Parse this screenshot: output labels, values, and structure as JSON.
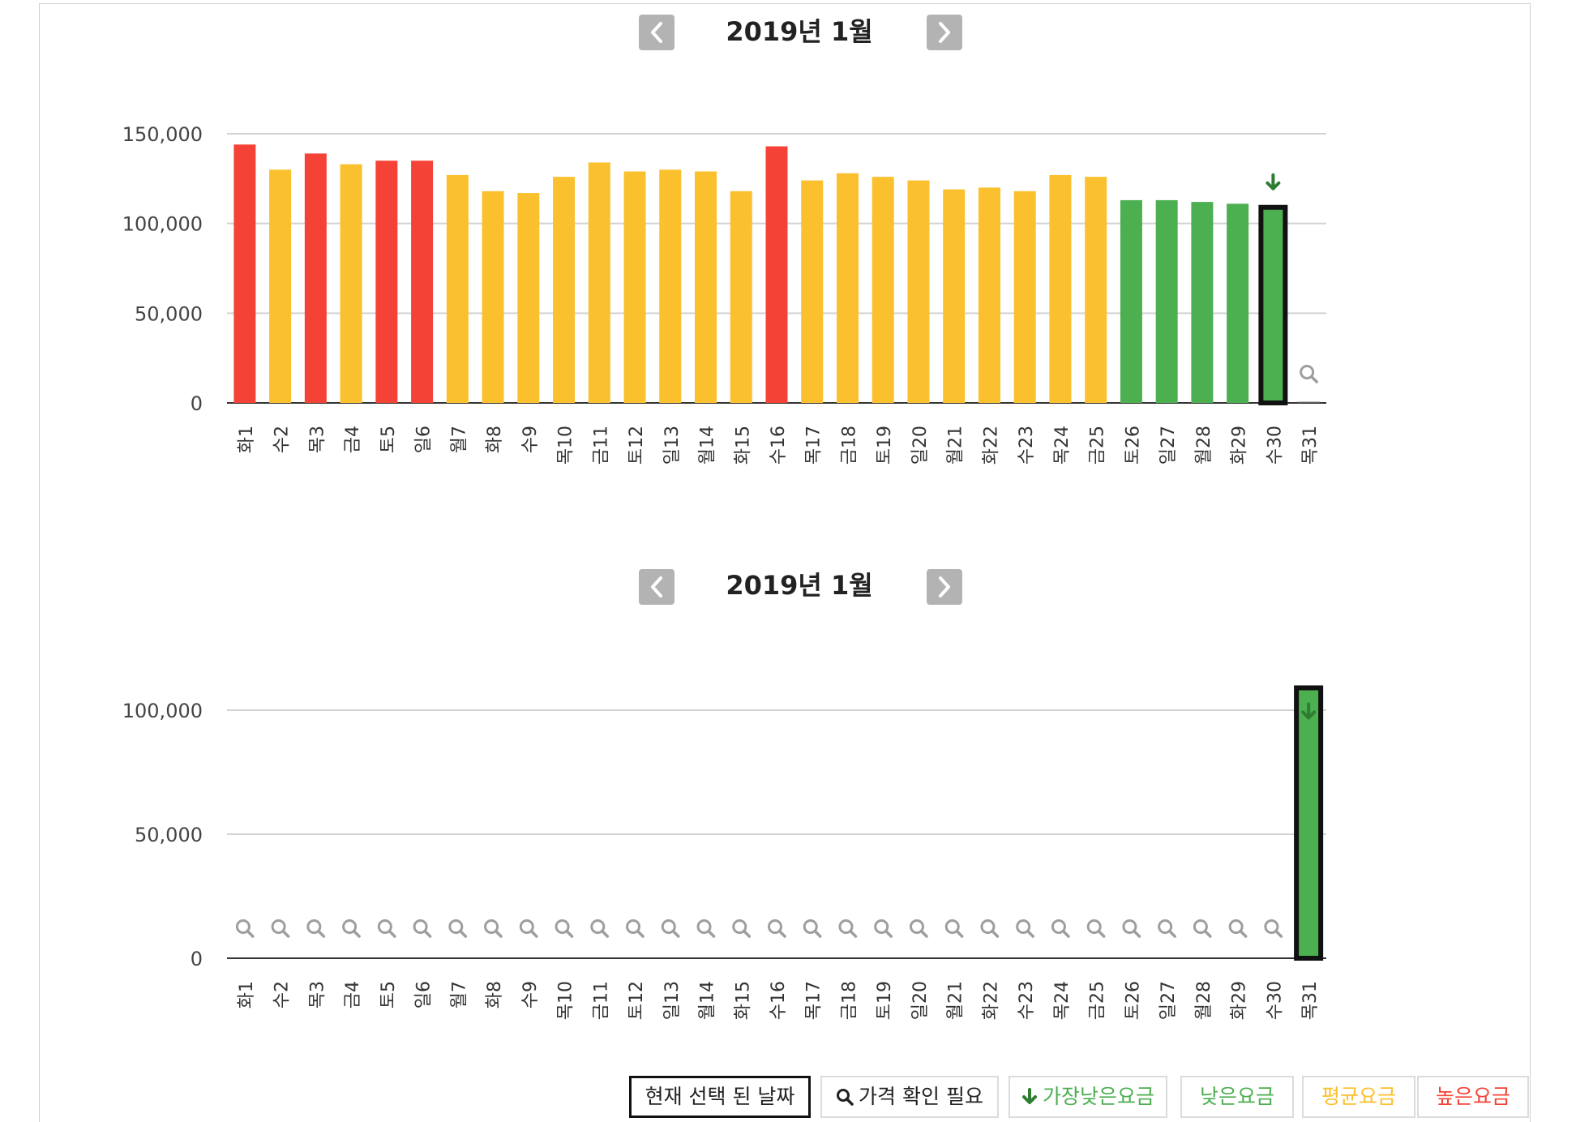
{
  "colors": {
    "high": "#f44336",
    "average": "#fbc02d",
    "low": "#4caf50",
    "lowest_arrow": "#2e7d32",
    "nav_button": "#b3b3b3",
    "grid": "#d3d3d3",
    "axis": "#333333",
    "search_icon": "#9e9e9e"
  },
  "icons": {
    "prev": "chevron-left-icon",
    "next": "chevron-right-icon",
    "lowest": "arrow-down-icon",
    "check_price": "search-icon"
  },
  "legend": {
    "selected": "현재 선택 된 날짜",
    "check_price": "가격 확인 필요",
    "lowest": "가장낮은요금",
    "low": "낮은요금",
    "average": "평균요금",
    "high": "높은요금"
  },
  "chart_data": [
    {
      "type": "bar",
      "title": "2019년 1월",
      "categories": [
        "화1",
        "수2",
        "목3",
        "금4",
        "토5",
        "일6",
        "월7",
        "화8",
        "수9",
        "목10",
        "금11",
        "토12",
        "일13",
        "월14",
        "화15",
        "수16",
        "목17",
        "금18",
        "토19",
        "일20",
        "월21",
        "화22",
        "수23",
        "목24",
        "금25",
        "토26",
        "일27",
        "월28",
        "화29",
        "수30",
        "목31"
      ],
      "values": [
        144000,
        130000,
        139000,
        133000,
        135000,
        135000,
        127000,
        118000,
        117000,
        126000,
        134000,
        129000,
        130000,
        129000,
        118000,
        143000,
        124000,
        128000,
        126000,
        124000,
        119000,
        120000,
        118000,
        127000,
        126000,
        113000,
        113000,
        112000,
        111000,
        109000,
        null
      ],
      "levels": [
        "high",
        "average",
        "high",
        "average",
        "high",
        "high",
        "average",
        "average",
        "average",
        "average",
        "average",
        "average",
        "average",
        "average",
        "average",
        "high",
        "average",
        "average",
        "average",
        "average",
        "average",
        "average",
        "average",
        "average",
        "average",
        "low",
        "low",
        "low",
        "low",
        "low",
        "none"
      ],
      "selected_index": 29,
      "lowest_index": 29,
      "check_price_indices": [
        30
      ],
      "yticks": [
        0,
        50000,
        100000,
        150000
      ],
      "ytick_labels": [
        "0",
        "50,000",
        "100,000",
        "150,000"
      ],
      "ylim": [
        0,
        150000
      ],
      "grid": true
    },
    {
      "type": "bar",
      "title": "2019년 1월",
      "categories": [
        "화1",
        "수2",
        "목3",
        "금4",
        "토5",
        "일6",
        "월7",
        "화8",
        "수9",
        "목10",
        "금11",
        "토12",
        "일13",
        "월14",
        "화15",
        "수16",
        "목17",
        "금18",
        "토19",
        "일20",
        "월21",
        "화22",
        "수23",
        "목24",
        "금25",
        "토26",
        "일27",
        "월28",
        "화29",
        "수30",
        "목31"
      ],
      "values": [
        null,
        null,
        null,
        null,
        null,
        null,
        null,
        null,
        null,
        null,
        null,
        null,
        null,
        null,
        null,
        null,
        null,
        null,
        null,
        null,
        null,
        null,
        null,
        null,
        null,
        null,
        null,
        null,
        null,
        null,
        109000
      ],
      "levels": [
        "none",
        "none",
        "none",
        "none",
        "none",
        "none",
        "none",
        "none",
        "none",
        "none",
        "none",
        "none",
        "none",
        "none",
        "none",
        "none",
        "none",
        "none",
        "none",
        "none",
        "none",
        "none",
        "none",
        "none",
        "none",
        "none",
        "none",
        "none",
        "none",
        "none",
        "low"
      ],
      "selected_index": 30,
      "lowest_index": 30,
      "check_price_indices": [
        0,
        1,
        2,
        3,
        4,
        5,
        6,
        7,
        8,
        9,
        10,
        11,
        12,
        13,
        14,
        15,
        16,
        17,
        18,
        19,
        20,
        21,
        22,
        23,
        24,
        25,
        26,
        27,
        28,
        29
      ],
      "yticks": [
        0,
        50000,
        100000
      ],
      "ytick_labels": [
        "0",
        "50,000",
        "100,000"
      ],
      "ylim": [
        0,
        100000
      ],
      "grid": true
    }
  ]
}
